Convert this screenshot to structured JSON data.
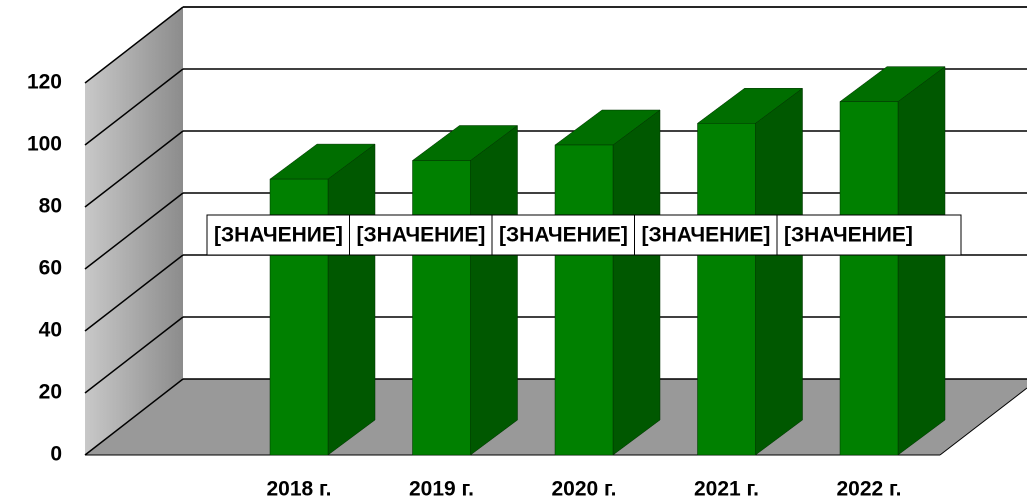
{
  "chart_data": {
    "type": "bar3d",
    "categories": [
      "2018 г.",
      "2019 г.",
      "2020 г.",
      "2021 г.",
      "2022 г."
    ],
    "values": [
      89,
      95,
      100,
      107,
      114
    ],
    "value_labels": [
      "[ЗНАЧЕНИЕ]",
      "[ЗНАЧЕНИЕ]",
      "[ЗНАЧЕНИЕ]",
      "[ЗНАЧЕНИЕ]",
      "[ЗНАЧЕНИЕ]"
    ],
    "color": "#008000",
    "ylim": [
      0,
      120
    ],
    "yticks": [
      0,
      20,
      40,
      60,
      80,
      100,
      120
    ],
    "grid": true
  }
}
